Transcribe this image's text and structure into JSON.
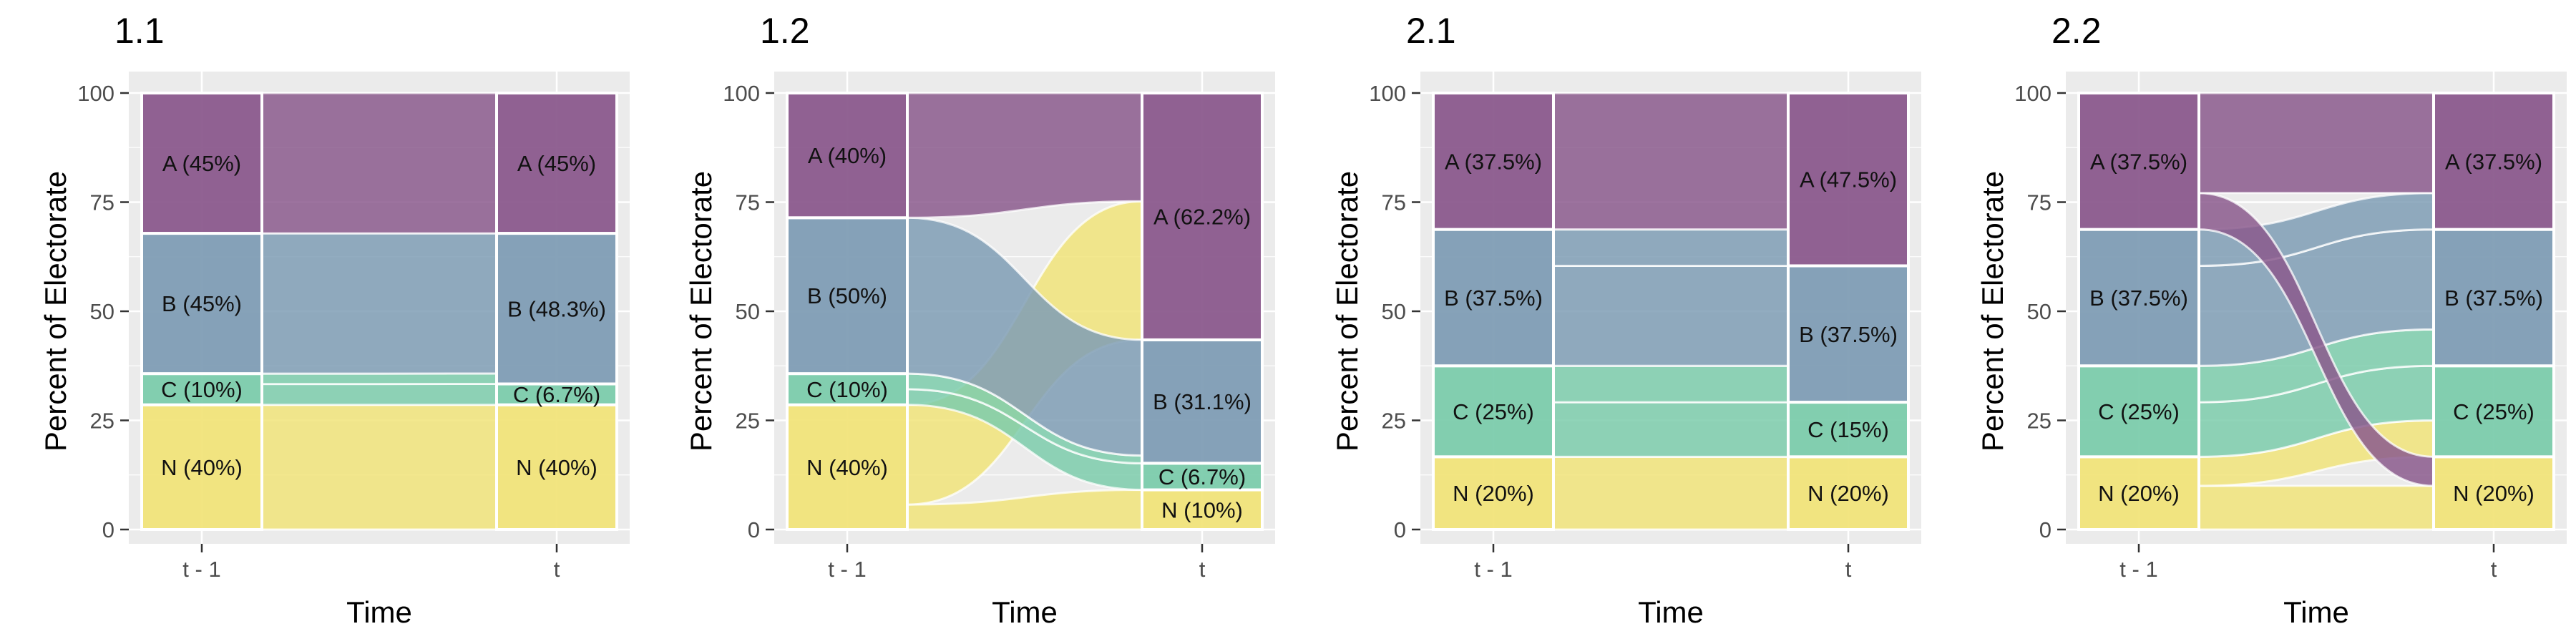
{
  "palette": {
    "A": "#8B5A8D",
    "B": "#7F9DB5",
    "C": "#7CCCAC",
    "N": "#F1E47A",
    "panel_bg": "#EBEBEB",
    "grid": "#FFFFFF",
    "flow_edge": "#FFFFFF"
  },
  "chart_data": [
    {
      "type": "area",
      "title": "1.1",
      "xlabel": "Time",
      "ylabel": "Percent of Electorate",
      "ylim": [
        0,
        100
      ],
      "yticks": [
        "0",
        "25",
        "50",
        "75",
        "100"
      ],
      "categories": [
        "t - 1",
        "t"
      ],
      "grid": true,
      "stack_order": [
        "N",
        "C",
        "B",
        "A"
      ],
      "t_minus_1": [
        {
          "key": "A",
          "value": 45,
          "label": "A (45%)"
        },
        {
          "key": "B",
          "value": 45,
          "label": "B (45%)"
        },
        {
          "key": "C",
          "value": 10,
          "label": "C (10%)"
        },
        {
          "key": "N",
          "value": 40,
          "label": "N (40%)"
        }
      ],
      "t": [
        {
          "key": "A",
          "value": 45,
          "label": "A (45%)"
        },
        {
          "key": "B",
          "value": 48.3,
          "label": "B (48.3%)"
        },
        {
          "key": "C",
          "value": 6.7,
          "label": "C (6.7%)"
        },
        {
          "key": "N",
          "value": 40,
          "label": "N (40%)"
        }
      ],
      "flows": [
        {
          "from": "N",
          "to": "N",
          "value": 40
        },
        {
          "from": "C",
          "to": "C",
          "value": 4
        },
        {
          "from": "C",
          "to": "B",
          "value": 2
        },
        {
          "from": "B",
          "to": "B",
          "value": 27
        },
        {
          "from": "A",
          "to": "A",
          "value": 27
        }
      ]
    },
    {
      "type": "area",
      "title": "1.2",
      "xlabel": "Time",
      "ylabel": "Percent of Electorate",
      "ylim": [
        0,
        100
      ],
      "yticks": [
        "0",
        "25",
        "50",
        "75",
        "100"
      ],
      "categories": [
        "t - 1",
        "t"
      ],
      "grid": true,
      "stack_order": [
        "N",
        "C",
        "B",
        "A"
      ],
      "t_minus_1": [
        {
          "key": "A",
          "value": 40,
          "label": "A (40%)"
        },
        {
          "key": "B",
          "value": 50,
          "label": "B (50%)"
        },
        {
          "key": "C",
          "value": 10,
          "label": "C (10%)"
        },
        {
          "key": "N",
          "value": 40,
          "label": "N (40%)"
        }
      ],
      "t": [
        {
          "key": "A",
          "value": 62.2,
          "label": "A (62.2%)"
        },
        {
          "key": "B",
          "value": 31.1,
          "label": "B (31.1%)"
        },
        {
          "key": "C",
          "value": 6.7,
          "label": "C (6.7%)"
        },
        {
          "key": "N",
          "value": 10,
          "label": "N (10%)"
        }
      ],
      "flows": [
        {
          "from": "N",
          "to": "N",
          "value": 8
        },
        {
          "from": "N",
          "to": "A",
          "value": 32
        },
        {
          "from": "C",
          "to": "C",
          "value": 2
        },
        {
          "from": "C",
          "to": "B",
          "value": 2
        },
        {
          "from": "B",
          "to": "B",
          "value": 30
        },
        {
          "from": "A",
          "to": "A",
          "value": 25
        }
      ]
    },
    {
      "type": "area",
      "title": "2.1",
      "xlabel": "Time",
      "ylabel": "Percent of Electorate",
      "ylim": [
        0,
        100
      ],
      "yticks": [
        "0",
        "25",
        "50",
        "75",
        "100"
      ],
      "categories": [
        "t - 1",
        "t"
      ],
      "grid": true,
      "stack_order": [
        "N",
        "C",
        "B",
        "A"
      ],
      "t_minus_1": [
        {
          "key": "A",
          "value": 37.5,
          "label": "A (37.5%)"
        },
        {
          "key": "B",
          "value": 37.5,
          "label": "B (37.5%)"
        },
        {
          "key": "C",
          "value": 25,
          "label": "C (25%)"
        },
        {
          "key": "N",
          "value": 20,
          "label": "N (20%)"
        }
      ],
      "t": [
        {
          "key": "A",
          "value": 47.5,
          "label": "A (47.5%)"
        },
        {
          "key": "B",
          "value": 37.5,
          "label": "B (37.5%)"
        },
        {
          "key": "C",
          "value": 15,
          "label": "C (15%)"
        },
        {
          "key": "N",
          "value": 20,
          "label": "N (20%)"
        }
      ],
      "flows": [
        {
          "from": "N",
          "to": "N",
          "value": 20
        },
        {
          "from": "C",
          "to": "C",
          "value": 12
        },
        {
          "from": "C",
          "to": "B",
          "value": 8
        },
        {
          "from": "B",
          "to": "B",
          "value": 22
        },
        {
          "from": "B",
          "to": "A",
          "value": 8
        },
        {
          "from": "A",
          "to": "A",
          "value": 30
        }
      ]
    },
    {
      "type": "area",
      "title": "2.2",
      "xlabel": "Time",
      "ylabel": "Percent of Electorate",
      "ylim": [
        0,
        100
      ],
      "yticks": [
        "0",
        "25",
        "50",
        "75",
        "100"
      ],
      "categories": [
        "t - 1",
        "t"
      ],
      "grid": true,
      "stack_order": [
        "N",
        "C",
        "B",
        "A"
      ],
      "t_minus_1": [
        {
          "key": "A",
          "value": 37.5,
          "label": "A (37.5%)"
        },
        {
          "key": "B",
          "value": 37.5,
          "label": "B (37.5%)"
        },
        {
          "key": "C",
          "value": 25,
          "label": "C (25%)"
        },
        {
          "key": "N",
          "value": 20,
          "label": "N (20%)"
        }
      ],
      "t": [
        {
          "key": "A",
          "value": 37.5,
          "label": "A (37.5%)"
        },
        {
          "key": "B",
          "value": 37.5,
          "label": "B (37.5%)"
        },
        {
          "key": "C",
          "value": 25,
          "label": "C (25%)"
        },
        {
          "key": "N",
          "value": 20,
          "label": "N (20%)"
        }
      ],
      "flows": [
        {
          "from": "N",
          "to": "N",
          "value": 12
        },
        {
          "from": "N",
          "to": "C",
          "value": 8
        },
        {
          "from": "C",
          "to": "C",
          "value": 12
        },
        {
          "from": "C",
          "to": "B",
          "value": 8
        },
        {
          "from": "B",
          "to": "B",
          "value": 22
        },
        {
          "from": "B",
          "to": "A",
          "value": 8
        },
        {
          "from": "A",
          "to": "N",
          "value": 8
        },
        {
          "from": "A",
          "to": "A",
          "value": 22
        }
      ]
    }
  ]
}
